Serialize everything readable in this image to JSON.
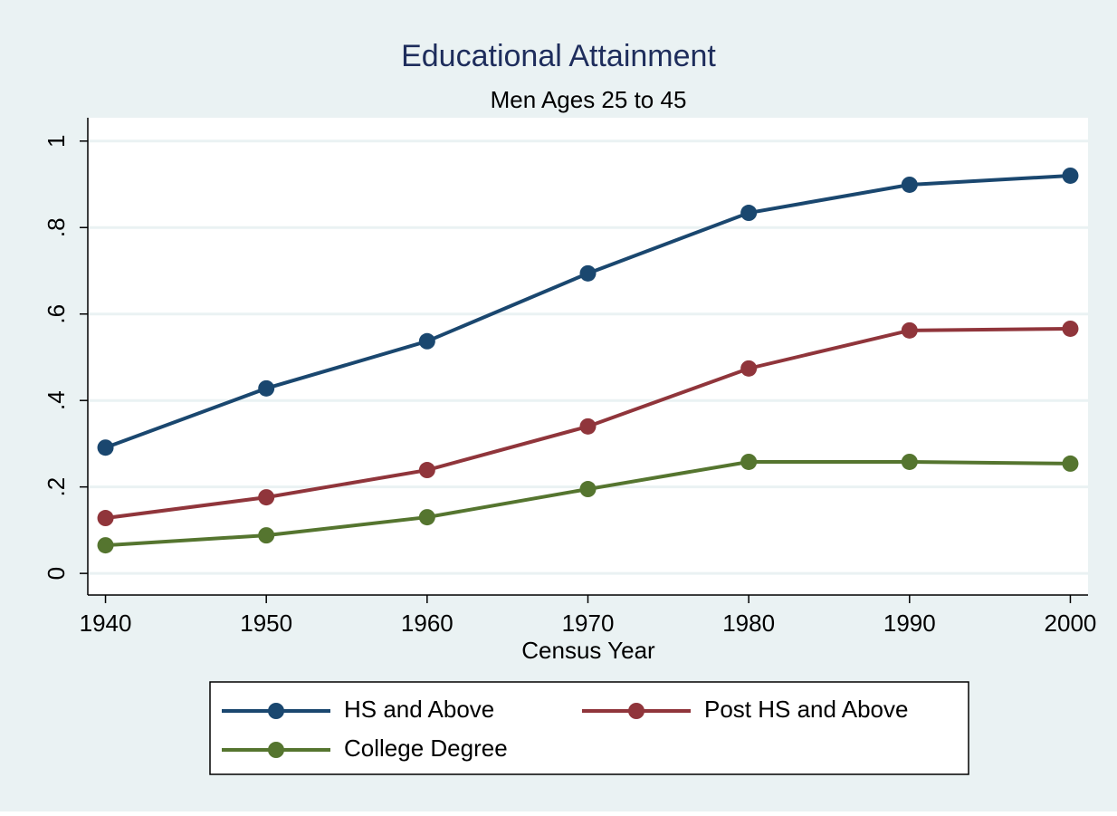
{
  "chart_data": {
    "type": "line",
    "title": "Educational Attainment",
    "subtitle": "Men Ages 25 to 45",
    "x_label": "Census Year",
    "x": [
      1940,
      1950,
      1960,
      1970,
      1980,
      1990,
      2000
    ],
    "xlim": [
      1938.9,
      2001.1
    ],
    "xticks": [
      1940,
      1950,
      1960,
      1970,
      1980,
      1990,
      2000
    ],
    "ylim": [
      -0.05,
      1.054
    ],
    "yticks": [
      0,
      {
        "value": 0.2,
        "label": ".2"
      },
      {
        "value": 0.4,
        "label": ".4"
      },
      {
        "value": 0.6,
        "label": ".6"
      },
      {
        "value": 0.8,
        "label": ".8"
      },
      1
    ],
    "grid": true,
    "legend": "bottom",
    "series": [
      {
        "name": "HS and Above",
        "color": "#1a476f",
        "values": [
          0.291,
          0.428,
          0.537,
          0.694,
          0.834,
          0.899,
          0.92
        ]
      },
      {
        "name": "Post HS and Above",
        "color": "#90353b",
        "values": [
          0.128,
          0.176,
          0.239,
          0.34,
          0.474,
          0.562,
          0.566
        ]
      },
      {
        "name": "College Degree",
        "color": "#55752f",
        "values": [
          0.065,
          0.088,
          0.13,
          0.195,
          0.258,
          0.258,
          0.254
        ]
      }
    ]
  }
}
